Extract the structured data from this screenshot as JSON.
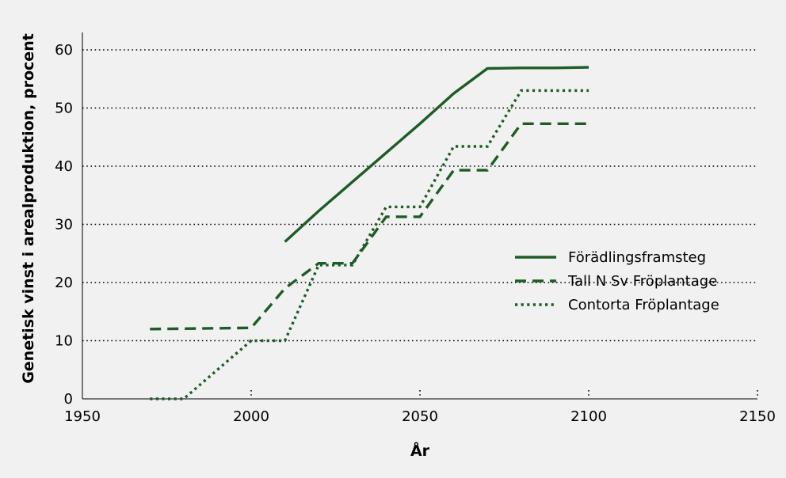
{
  "chart_data": {
    "type": "line",
    "title": "",
    "xlabel": "År",
    "ylabel": "Genetisk vinst i arealproduktion, procent",
    "xlim": [
      1950,
      2150
    ],
    "ylim": [
      0,
      60
    ],
    "xticks": [
      1950,
      2000,
      2050,
      2100,
      2150
    ],
    "yticks": [
      0,
      10,
      20,
      30,
      40,
      50,
      60
    ],
    "grid": "horizontal dotted",
    "legend_position": "right",
    "colors": {
      "series": "#1e5c25",
      "background": "#f1f1f1",
      "grid": "#000000"
    },
    "series": [
      {
        "name": "Förädlingsframsteg",
        "style": "solid",
        "x": [
          2010,
          2020,
          2030,
          2040,
          2050,
          2060,
          2070,
          2080,
          2090,
          2100
        ],
        "y": [
          27,
          32.3,
          37.3,
          42.3,
          47.3,
          52.5,
          56.8,
          56.9,
          56.9,
          57
        ]
      },
      {
        "name": "Tall N Sv Fröplantage",
        "style": "dashed",
        "x": [
          1970,
          2000,
          2010,
          2020,
          2030,
          2040,
          2050,
          2060,
          2070,
          2080,
          2090,
          2100
        ],
        "y": [
          12,
          12.2,
          19,
          23.3,
          23.3,
          31.3,
          31.3,
          39.3,
          39.3,
          47.3,
          47.3,
          47.3
        ]
      },
      {
        "name": "Contorta Fröplantage",
        "style": "dotted",
        "x": [
          1970,
          1980,
          2000,
          2010,
          2020,
          2030,
          2040,
          2050,
          2060,
          2070,
          2080,
          2090,
          2100
        ],
        "y": [
          0,
          0,
          10,
          10,
          23,
          23,
          33,
          33,
          43.4,
          43.4,
          53,
          53,
          53
        ]
      }
    ]
  }
}
